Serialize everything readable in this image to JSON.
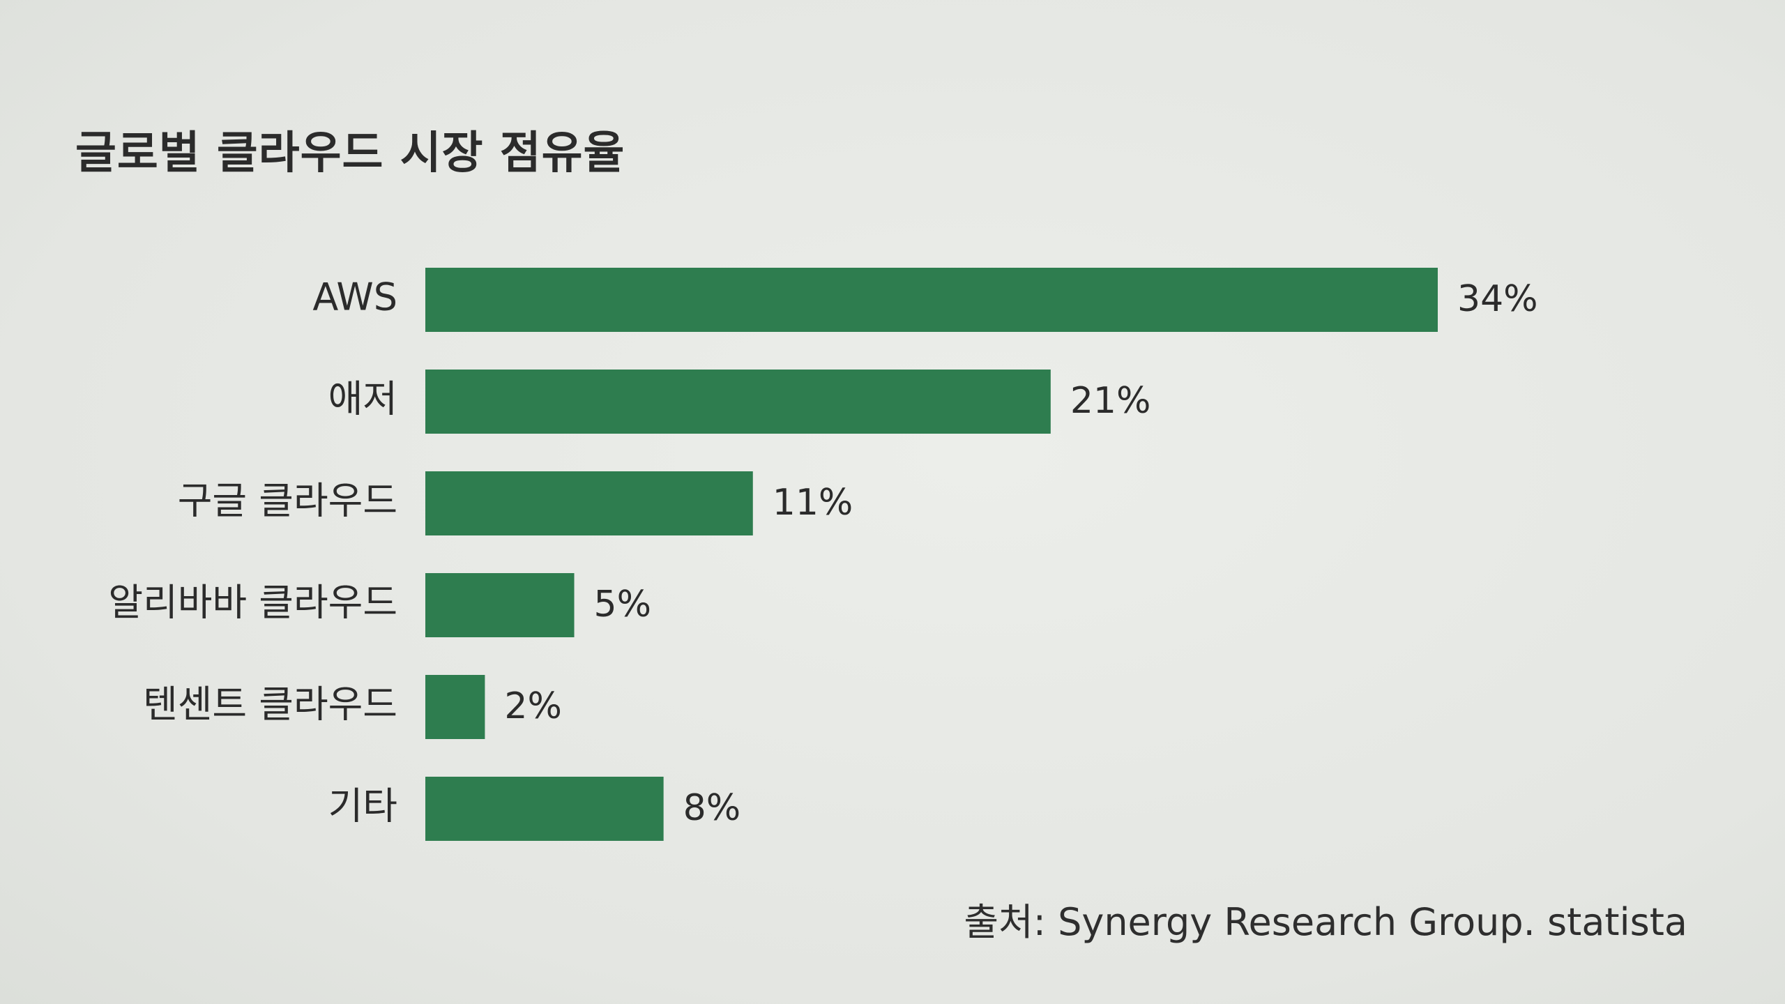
{
  "chart_data": {
    "type": "bar",
    "orientation": "horizontal",
    "title": "글로벌 클라우드 시장 점유율",
    "categories": [
      "AWS",
      "애저",
      "구글 클라우드",
      "알리바바 클라우드",
      "텐센트 클라우드",
      "기타"
    ],
    "values": [
      34,
      21,
      11,
      5,
      2,
      8
    ],
    "value_labels": [
      "34%",
      "21%",
      "11%",
      "5%",
      "2%",
      "8%"
    ],
    "unit": "%",
    "xlim": [
      0,
      34
    ],
    "grid": false,
    "legend": "none",
    "bar_color": "#2e7d4f",
    "source": "출처: Synergy Research Group. statista"
  }
}
